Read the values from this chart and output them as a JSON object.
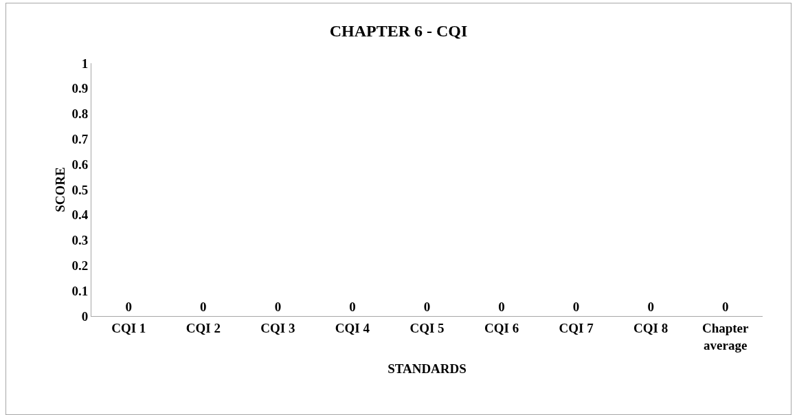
{
  "chart_data": {
    "type": "bar",
    "title": "CHAPTER 6 - CQI",
    "xlabel": "STANDARDS",
    "ylabel": "SCORE",
    "categories": [
      "CQI 1",
      "CQI 2",
      "CQI 3",
      "CQI 4",
      "CQI 5",
      "CQI 6",
      "CQI 7",
      "CQI 8",
      "Chapter average"
    ],
    "values": [
      0,
      0,
      0,
      0,
      0,
      0,
      0,
      0,
      0
    ],
    "ylim": [
      0,
      1
    ],
    "yticks": [
      0,
      0.1,
      0.2,
      0.3,
      0.4,
      0.5,
      0.6,
      0.7,
      0.8,
      0.9,
      1
    ],
    "data_labels": true,
    "grid": false
  }
}
